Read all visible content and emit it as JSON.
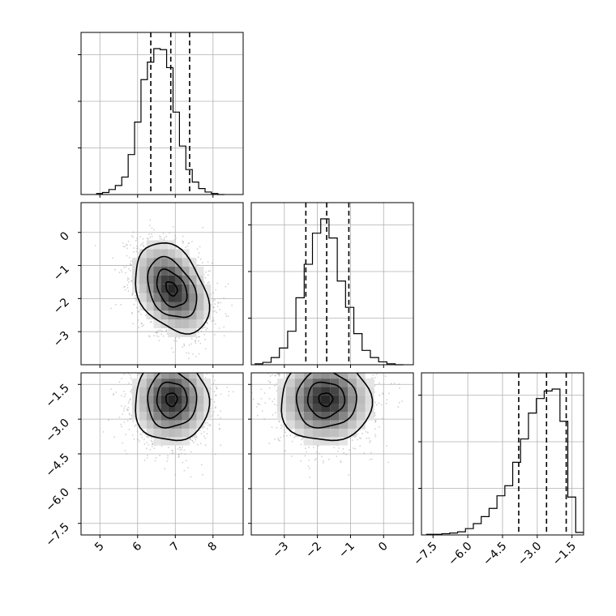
{
  "chart_data": {
    "type": "corner",
    "parameters": [
      {
        "range": [
          4.5,
          8.8
        ],
        "ticks": [
          5,
          6,
          7,
          8
        ],
        "tick_labels": [
          "5",
          "6",
          "7",
          "8"
        ],
        "quantiles": [
          6.35,
          6.88,
          7.38
        ]
      },
      {
        "range": [
          -4.0,
          0.9
        ],
        "ticks": [
          -3,
          -2,
          -1,
          0
        ],
        "tick_labels": [
          "−3",
          "−2",
          "−1",
          "0"
        ],
        "quantiles": [
          -2.35,
          -1.72,
          -1.05
        ]
      },
      {
        "range": [
          -8.0,
          -1.0
        ],
        "ticks": [
          -7.5,
          -6.0,
          -4.5,
          -3.0,
          -1.5
        ],
        "tick_labels": [
          "−7.5",
          "−6.0",
          "−4.5",
          "−3.0",
          "−1.5"
        ],
        "quantiles": [
          -3.8,
          -2.6,
          -1.75
        ]
      }
    ],
    "histograms": [
      {
        "edges_range": [
          4.9,
          8.3
        ],
        "counts": [
          2,
          4,
          10,
          18,
          35,
          80,
          145,
          230,
          265,
          292,
          290,
          254,
          165,
          97,
          50,
          25,
          12,
          5,
          2,
          0
        ]
      },
      {
        "edges_range": [
          -3.9,
          0.6
        ],
        "counts": [
          2,
          5,
          15,
          35,
          70,
          140,
          210,
          275,
          305,
          265,
          175,
          120,
          65,
          30,
          15,
          6,
          2,
          0
        ]
      },
      {
        "edges_range": [
          -7.8,
          -1.0
        ],
        "counts": [
          1,
          1,
          2,
          3,
          5,
          10,
          18,
          29,
          42,
          62,
          78,
          115,
          152,
          193,
          216,
          228,
          231,
          180,
          60,
          4
        ]
      }
    ],
    "pairs": [
      {
        "x_param": 0,
        "y_param": 1,
        "center": [
          6.9,
          -1.7
        ],
        "sigma": [
          0.5,
          0.7
        ],
        "rho": -0.35,
        "n_points": 2200,
        "contour_levels_sigma": [
          0.3,
          0.8,
          1.3,
          1.95
        ]
      },
      {
        "x_param": 0,
        "y_param": 2,
        "center": [
          6.9,
          -2.15
        ],
        "sigma": [
          0.5,
          0.95
        ],
        "rho": 0.0,
        "n_points": 2200,
        "contour_levels_sigma": [
          0.3,
          0.8,
          1.3,
          1.95
        ]
      },
      {
        "x_param": 1,
        "y_param": 2,
        "center": [
          -1.75,
          -2.15
        ],
        "sigma": [
          0.7,
          0.95
        ],
        "rho": 0.0,
        "n_points": 2200,
        "contour_levels_sigma": [
          0.3,
          0.8,
          1.3,
          1.95
        ]
      }
    ],
    "grid": true,
    "title": "",
    "xlabel": "",
    "ylabel": ""
  }
}
